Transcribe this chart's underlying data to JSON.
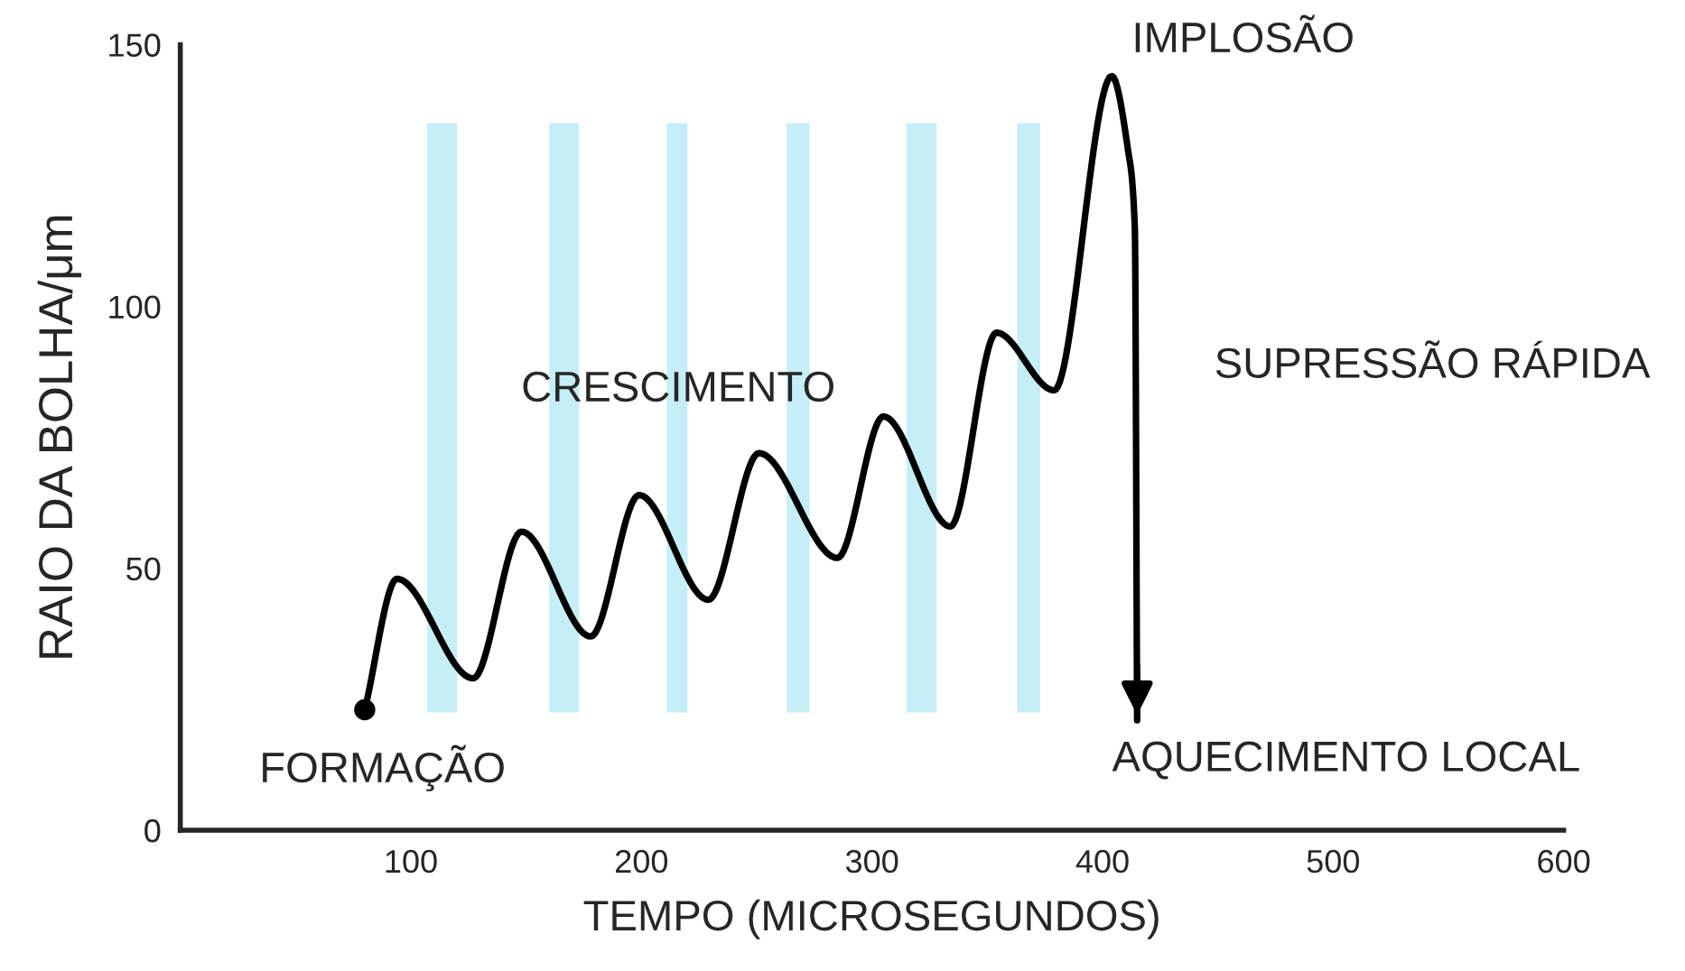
{
  "chart_data": {
    "type": "line",
    "xlabel": "TEMPO (MICROSEGUNDOS)",
    "ylabel": "RAIO DA BOLHA/μm",
    "series": [
      {
        "color": "#000000",
        "x": [
          80,
          94,
          127,
          148,
          178,
          199,
          229,
          251,
          285,
          305,
          334,
          354,
          379,
          404,
          411,
          414,
          415
        ],
        "values": [
          23,
          48,
          29,
          57,
          37,
          64,
          44,
          72,
          52,
          79,
          58,
          95,
          84,
          144,
          130,
          115,
          21
        ]
      },
      {
        "type": "scatter",
        "color": "#000000",
        "x": [
          80
        ],
        "values": [
          23
        ]
      }
    ],
    "bands": [
      {
        "axis": "x",
        "from": 107,
        "to": 120,
        "color": "#c6eef6"
      },
      {
        "axis": "x",
        "from": 160,
        "to": 173,
        "color": "#c6eef6"
      },
      {
        "axis": "x",
        "from": 211,
        "to": 220,
        "color": "#c6eef6"
      },
      {
        "axis": "x",
        "from": 263,
        "to": 273,
        "color": "#c6eef6"
      },
      {
        "axis": "x",
        "from": 315,
        "to": 328,
        "color": "#c6eef6"
      },
      {
        "axis": "x",
        "from": 363,
        "to": 373,
        "color": "#c6eef6"
      }
    ],
    "annotations": [
      {
        "text": "FORMAÇÃO",
        "x": 80,
        "y": 23
      },
      "CRESCIMENTO",
      {
        "text": "IMPLOSÃO",
        "x": 404,
        "y": 144
      },
      "SUPRESSÃO RÁPIDA",
      {
        "text": "AQUECIMENTO LOCAL",
        "x": 415,
        "y": 21
      }
    ],
    "xlim": [
      0,
      600
    ],
    "ylim": [
      0,
      150
    ],
    "xticks": [
      100,
      200,
      300,
      400,
      500,
      600
    ],
    "yticks": [
      0,
      50,
      100,
      150
    ],
    "grid": false,
    "legend": false
  }
}
